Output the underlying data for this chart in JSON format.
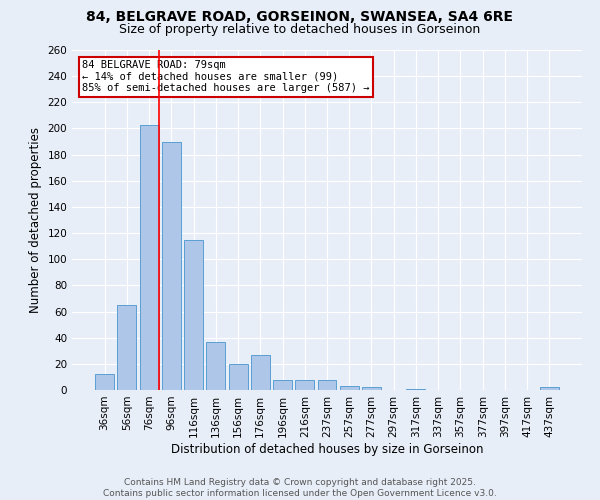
{
  "title_line1": "84, BELGRAVE ROAD, GORSEINON, SWANSEA, SA4 6RE",
  "title_line2": "Size of property relative to detached houses in Gorseinon",
  "xlabel": "Distribution of detached houses by size in Gorseinon",
  "ylabel": "Number of detached properties",
  "bar_labels": [
    "36sqm",
    "56sqm",
    "76sqm",
    "96sqm",
    "116sqm",
    "136sqm",
    "156sqm",
    "176sqm",
    "196sqm",
    "216sqm",
    "237sqm",
    "257sqm",
    "277sqm",
    "297sqm",
    "317sqm",
    "337sqm",
    "357sqm",
    "377sqm",
    "397sqm",
    "417sqm",
    "437sqm"
  ],
  "bar_values": [
    12,
    65,
    203,
    190,
    115,
    37,
    20,
    27,
    8,
    8,
    8,
    3,
    2,
    0,
    1,
    0,
    0,
    0,
    0,
    0,
    2
  ],
  "bar_color": "#aec6e8",
  "bar_edge_color": "#5a9fd4",
  "background_color": "#e8eef8",
  "grid_color": "#ffffff",
  "red_line_index": 2,
  "annotation_line1": "84 BELGRAVE ROAD: 79sqm",
  "annotation_line2": "← 14% of detached houses are smaller (99)",
  "annotation_line3": "85% of semi-detached houses are larger (587) →",
  "annotation_box_color": "#ffffff",
  "annotation_box_edge_color": "#cc0000",
  "ylim": [
    0,
    260
  ],
  "yticks": [
    0,
    20,
    40,
    60,
    80,
    100,
    120,
    140,
    160,
    180,
    200,
    220,
    240,
    260
  ],
  "footer_line1": "Contains HM Land Registry data © Crown copyright and database right 2025.",
  "footer_line2": "Contains public sector information licensed under the Open Government Licence v3.0.",
  "title_fontsize": 10,
  "subtitle_fontsize": 9,
  "axis_label_fontsize": 8.5,
  "tick_fontsize": 7.5,
  "annotation_fontsize": 7.5,
  "footer_fontsize": 6.5
}
